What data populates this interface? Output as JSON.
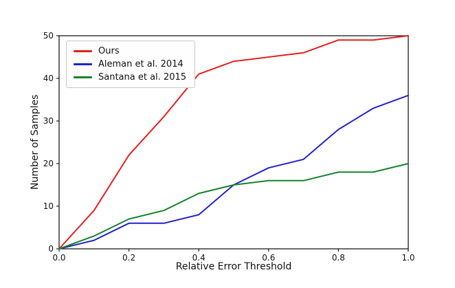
{
  "figure": {
    "background": "#ffffff",
    "spine_color": "#1a1a1a",
    "text_color": "#111111"
  },
  "chart_data": {
    "type": "line",
    "title": "",
    "xlabel": "Relative Error Threshold",
    "ylabel": "Number of Samples",
    "xlim": [
      0.0,
      1.0
    ],
    "ylim": [
      0,
      50
    ],
    "grid": false,
    "legend_position": "upper-left",
    "xticks": [
      "0.0",
      "0.2",
      "0.4",
      "0.6",
      "0.8",
      "1.0"
    ],
    "xtick_values": [
      0.0,
      0.2,
      0.4,
      0.6,
      0.8,
      1.0
    ],
    "yticks": [
      "0",
      "10",
      "20",
      "30",
      "40",
      "50"
    ],
    "ytick_values": [
      0,
      10,
      20,
      30,
      40,
      50
    ],
    "x": [
      0.0,
      0.1,
      0.2,
      0.3,
      0.4,
      0.5,
      0.6,
      0.7,
      0.8,
      0.9,
      1.0
    ],
    "series": [
      {
        "name": "Ours",
        "color": "#e3201f",
        "values": [
          0,
          9,
          22,
          31,
          41,
          44,
          45,
          46,
          49,
          49,
          50
        ]
      },
      {
        "name": "Aleman et al. 2014",
        "color": "#2220cb",
        "values": [
          0,
          2,
          6,
          6,
          8,
          15,
          19,
          21,
          28,
          33,
          36
        ]
      },
      {
        "name": "Santana et al. 2015",
        "color": "#15832d",
        "values": [
          0,
          3,
          7,
          9,
          13,
          15,
          16,
          16,
          18,
          18,
          20
        ]
      }
    ]
  }
}
